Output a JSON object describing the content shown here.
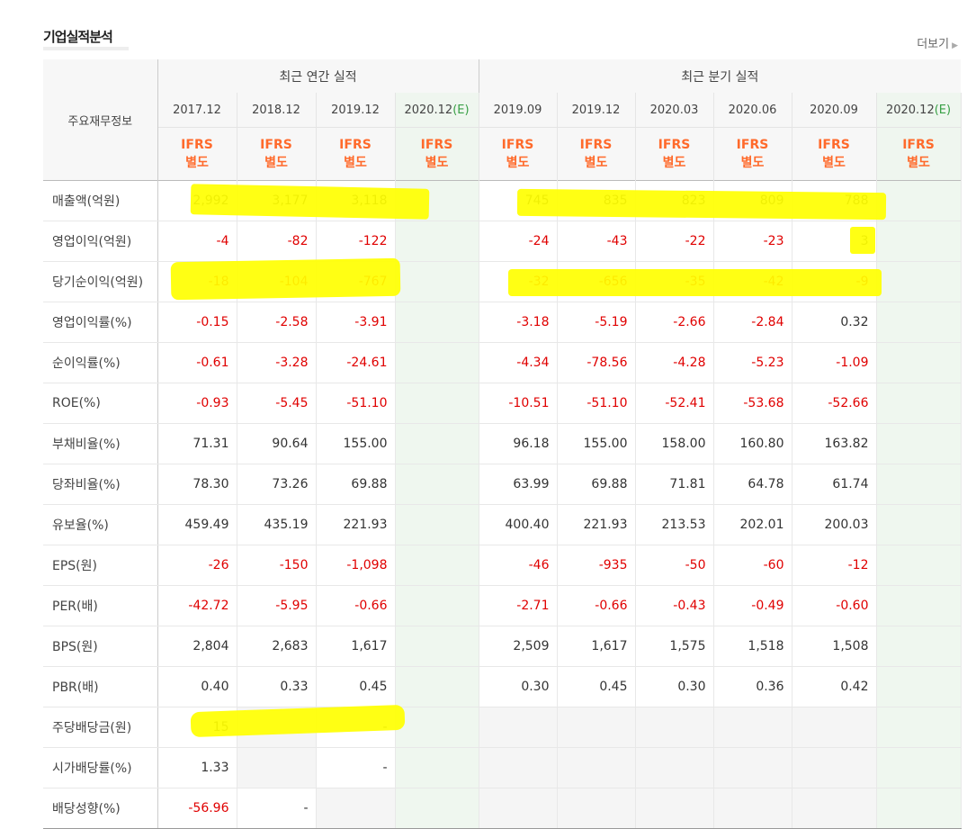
{
  "section": {
    "title": "기업실적분석",
    "more_label": "더보기"
  },
  "header": {
    "item_label": "주요재무정보",
    "annual_label": "최근 연간 실적",
    "quarter_label": "최근 분기 실적",
    "annual_periods": [
      "2017.12",
      "2018.12",
      "2019.12",
      "2020.12"
    ],
    "quarter_periods": [
      "2019.09",
      "2019.12",
      "2020.03",
      "2020.06",
      "2020.09",
      "2020.12"
    ],
    "estimate_mark": "(E)",
    "ifrs_line1": "IFRS",
    "ifrs_line2": "별도"
  },
  "rows": [
    {
      "label": "매출액(억원)",
      "annual": [
        "2,992",
        "3,177",
        "3,118",
        ""
      ],
      "quarter": [
        "745",
        "835",
        "823",
        "809",
        "788",
        ""
      ]
    },
    {
      "label": "영업이익(억원)",
      "annual": [
        "-4",
        "-82",
        "-122",
        ""
      ],
      "quarter": [
        "-24",
        "-43",
        "-22",
        "-23",
        "3",
        ""
      ]
    },
    {
      "label": "당기순이익(억원)",
      "annual": [
        "-18",
        "-104",
        "-767",
        ""
      ],
      "quarter": [
        "-32",
        "-656",
        "-35",
        "-42",
        "-9",
        ""
      ]
    },
    {
      "label": "영업이익률(%)",
      "annual": [
        "-0.15",
        "-2.58",
        "-3.91",
        ""
      ],
      "quarter": [
        "-3.18",
        "-5.19",
        "-2.66",
        "-2.84",
        "0.32",
        ""
      ]
    },
    {
      "label": "순이익률(%)",
      "annual": [
        "-0.61",
        "-3.28",
        "-24.61",
        ""
      ],
      "quarter": [
        "-4.34",
        "-78.56",
        "-4.28",
        "-5.23",
        "-1.09",
        ""
      ]
    },
    {
      "label": "ROE(%)",
      "annual": [
        "-0.93",
        "-5.45",
        "-51.10",
        ""
      ],
      "quarter": [
        "-10.51",
        "-51.10",
        "-52.41",
        "-53.68",
        "-52.66",
        ""
      ]
    },
    {
      "label": "부채비율(%)",
      "annual": [
        "71.31",
        "90.64",
        "155.00",
        ""
      ],
      "quarter": [
        "96.18",
        "155.00",
        "158.00",
        "160.80",
        "163.82",
        ""
      ]
    },
    {
      "label": "당좌비율(%)",
      "annual": [
        "78.30",
        "73.26",
        "69.88",
        ""
      ],
      "quarter": [
        "63.99",
        "69.88",
        "71.81",
        "64.78",
        "61.74",
        ""
      ]
    },
    {
      "label": "유보율(%)",
      "annual": [
        "459.49",
        "435.19",
        "221.93",
        ""
      ],
      "quarter": [
        "400.40",
        "221.93",
        "213.53",
        "202.01",
        "200.03",
        ""
      ]
    },
    {
      "label": "EPS(원)",
      "annual": [
        "-26",
        "-150",
        "-1,098",
        ""
      ],
      "quarter": [
        "-46",
        "-935",
        "-50",
        "-60",
        "-12",
        ""
      ]
    },
    {
      "label": "PER(배)",
      "annual": [
        "-42.72",
        "-5.95",
        "-0.66",
        ""
      ],
      "quarter": [
        "-2.71",
        "-0.66",
        "-0.43",
        "-0.49",
        "-0.60",
        ""
      ]
    },
    {
      "label": "BPS(원)",
      "annual": [
        "2,804",
        "2,683",
        "1,617",
        ""
      ],
      "quarter": [
        "2,509",
        "1,617",
        "1,575",
        "1,518",
        "1,508",
        ""
      ]
    },
    {
      "label": "PBR(배)",
      "annual": [
        "0.40",
        "0.33",
        "0.45",
        ""
      ],
      "quarter": [
        "0.30",
        "0.45",
        "0.30",
        "0.36",
        "0.42",
        ""
      ]
    },
    {
      "label": "주당배당금(원)",
      "annual": [
        "15",
        "",
        "-",
        ""
      ],
      "quarter": [
        "",
        "",
        "",
        "",
        "",
        ""
      ]
    },
    {
      "label": "시가배당률(%)",
      "annual": [
        "1.33",
        "",
        "-",
        ""
      ],
      "quarter": [
        "",
        "",
        "",
        "",
        "",
        ""
      ]
    },
    {
      "label": "배당성향(%)",
      "annual": [
        "-56.96",
        "-",
        "",
        ""
      ],
      "quarter": [
        "",
        "",
        "",
        "",
        "",
        ""
      ]
    }
  ],
  "colors": {
    "negative": "#e00000",
    "ifrs": "#ff6a2b",
    "estimate": "#39a046",
    "highlight": "#ffff00"
  }
}
